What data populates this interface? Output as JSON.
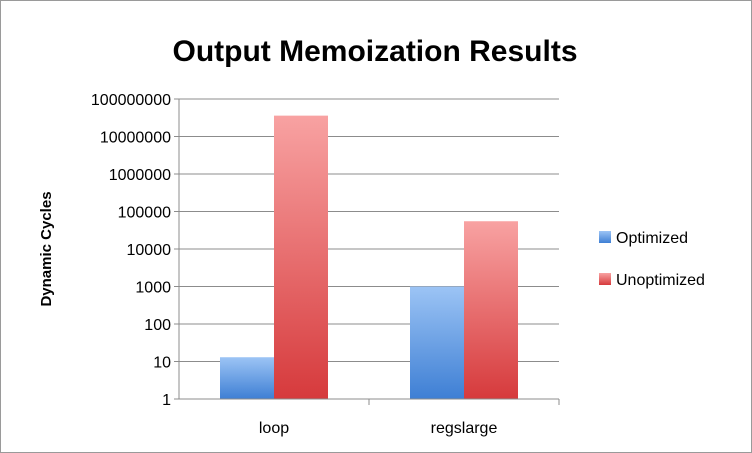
{
  "chart_data": {
    "type": "bar",
    "title": "Output Memoization Results",
    "xlabel": "",
    "ylabel": "Dynamic Cycles",
    "yscale": "log",
    "ylim": [
      1,
      100000000
    ],
    "yticks": [
      "1",
      "10",
      "100",
      "1000",
      "10000",
      "100000",
      "1000000",
      "10000000",
      "100000000"
    ],
    "categories": [
      "loop",
      "regslarge"
    ],
    "series": [
      {
        "name": "Optimized",
        "values": [
          13,
          1000
        ],
        "color": "#4a86d6"
      },
      {
        "name": "Unoptimized",
        "values": [
          36000000,
          55000
        ],
        "color": "#e0464a"
      }
    ],
    "grid": true,
    "legend": "right"
  }
}
